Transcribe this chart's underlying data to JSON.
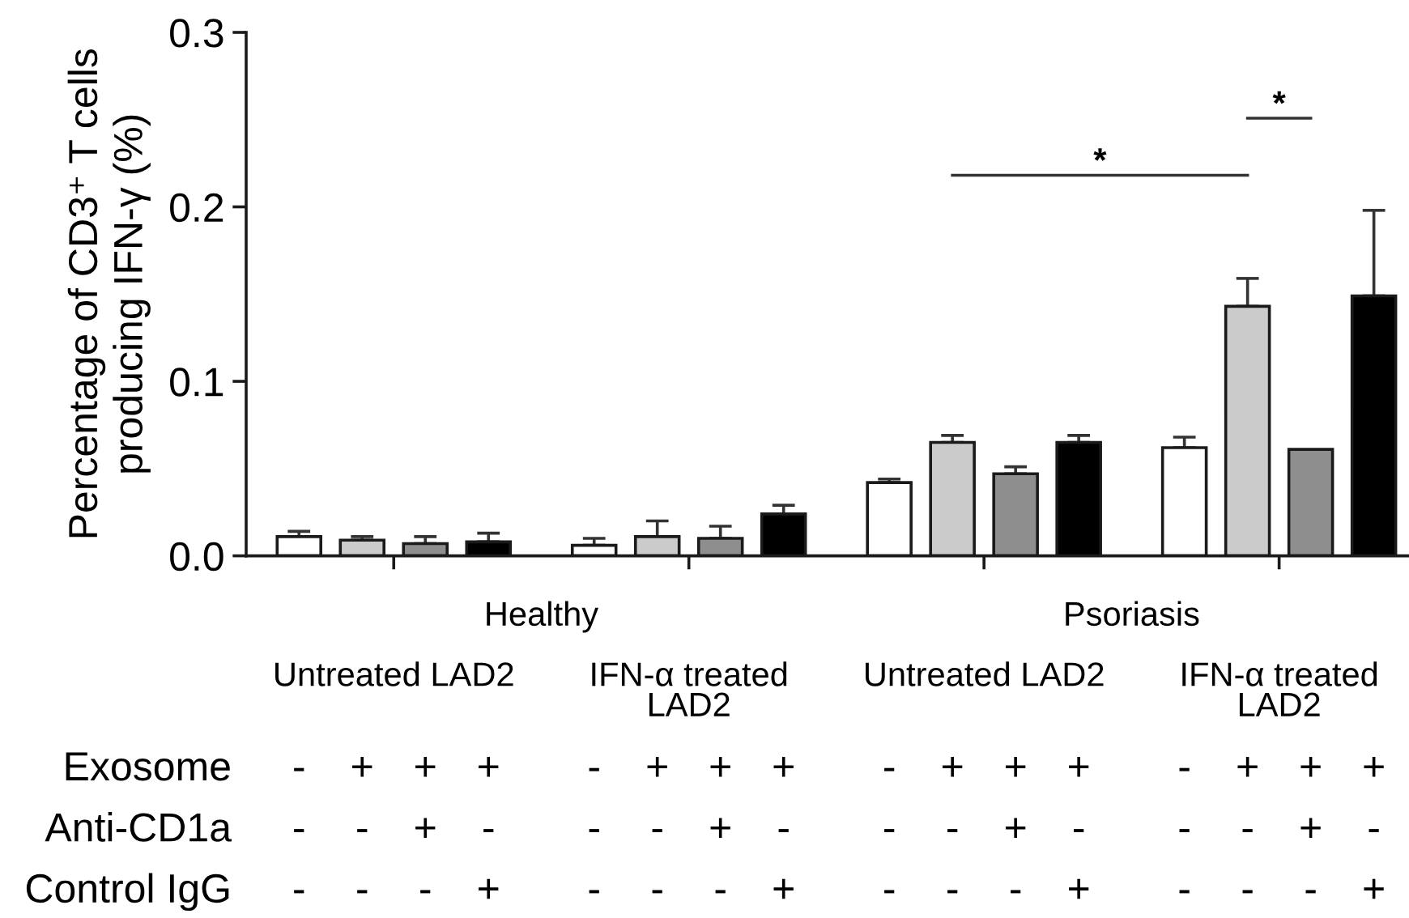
{
  "chart_data": {
    "type": "bar",
    "ylabel": "Percentage of CD3⁺ T cells producing IFN-γ (%)",
    "categories": [
      "Untreated LAD2",
      "IFN-α treated LAD2",
      "Untreated LAD2",
      "IFN-α treated LAD2"
    ],
    "series": [
      {
        "color": "#ffffff",
        "values": [
          0.011,
          0.006,
          0.042,
          0.062
        ],
        "errors": [
          [
            0.011,
            0.014
          ],
          [
            0.006,
            0.01
          ],
          [
            0.042,
            0.044
          ],
          [
            0.062,
            0.068
          ]
        ]
      },
      {
        "color": "#cbcbcb",
        "values": [
          0.009,
          0.011,
          0.065,
          0.143
        ],
        "errors": [
          [
            0.009,
            0.011
          ],
          [
            0.011,
            0.02
          ],
          [
            0.065,
            0.069
          ],
          [
            0.143,
            0.159
          ]
        ]
      },
      {
        "color": "#8e8e8e",
        "values": [
          0.007,
          0.01,
          0.047,
          0.061
        ],
        "errors": [
          [
            0.007,
            0.011
          ],
          [
            0.01,
            0.017
          ],
          [
            0.047,
            0.051
          ],
          null
        ]
      },
      {
        "color": "#000000",
        "values": [
          0.008,
          0.024,
          0.065,
          0.149
        ],
        "errors": [
          [
            0.008,
            0.013
          ],
          [
            0.024,
            0.029
          ],
          [
            0.065,
            0.069
          ],
          [
            0.149,
            0.198
          ]
        ]
      }
    ],
    "ylim": [
      0,
      0.3
    ],
    "yticks": [
      {
        "value": 0,
        "label": "0.0"
      },
      0.1,
      0.2,
      0.3
    ],
    "grid": false,
    "legend": false,
    "annotations": [
      "*",
      "*",
      "Healthy",
      "Psoriasis",
      "Exosome",
      "-",
      "+",
      "+",
      "+",
      "-",
      "+",
      "+",
      "+",
      "-",
      "+",
      "+",
      "+",
      "-",
      "+",
      "+",
      "+",
      "Anti-CD1a",
      "-",
      "-",
      "+",
      "-",
      "-",
      "-",
      "+",
      "-",
      "-",
      "-",
      "+",
      "-",
      "-",
      "-",
      "+",
      "-",
      "Control IgG",
      "-",
      "-",
      "-",
      "+",
      "-",
      "-",
      "-",
      "+",
      "-",
      "-",
      "-",
      "+",
      "-",
      "-",
      "-",
      "+"
    ]
  }
}
